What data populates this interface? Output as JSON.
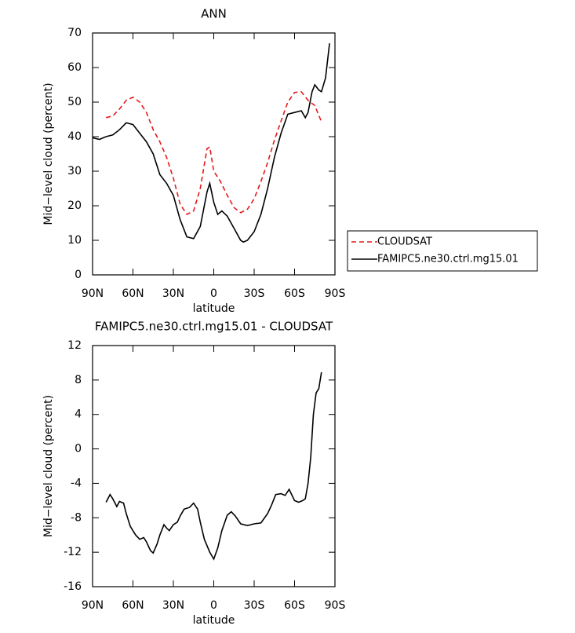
{
  "chart_data": [
    {
      "type": "line",
      "title": "ANN",
      "xlabel": "latitude",
      "ylabel": "Mid−level cloud (percent)",
      "xlim": [
        90,
        -90
      ],
      "ylim": [
        0,
        70
      ],
      "xticks": [
        {
          "value": 90,
          "label": "90N"
        },
        {
          "value": 60,
          "label": "60N"
        },
        {
          "value": 30,
          "label": "30N"
        },
        0,
        {
          "value": -30,
          "label": "30S"
        },
        {
          "value": -60,
          "label": "60S"
        },
        {
          "value": -90,
          "label": "90S"
        }
      ],
      "yticks": [
        0,
        10,
        20,
        30,
        40,
        50,
        60,
        70
      ],
      "legend": "right",
      "series": [
        {
          "name": "CLOUDSAT",
          "color": "#e41a1c",
          "dash": true,
          "x": [
            80,
            75,
            70,
            65,
            60,
            55,
            50,
            45,
            40,
            35,
            30,
            25,
            20,
            15,
            10,
            5,
            3,
            0,
            -5,
            -10,
            -15,
            -20,
            -25,
            -30,
            -35,
            -40,
            -45,
            -50,
            -55,
            -60,
            -65,
            -70,
            -75,
            -80
          ],
          "values": [
            45.5,
            46,
            48,
            50.5,
            51.4,
            50,
            47,
            42,
            38.5,
            34,
            28,
            20.5,
            17.5,
            18.5,
            25,
            36.5,
            37,
            30,
            27,
            23,
            19.5,
            18,
            19,
            22,
            27,
            32.5,
            39,
            44.5,
            50,
            52.8,
            53,
            50.5,
            49,
            44.3
          ]
        },
        {
          "name": "FAMIPC5.ne30.ctrl.mg15.01",
          "color": "#000000",
          "dash": false,
          "x": [
            90,
            85,
            80,
            75,
            70,
            65,
            60,
            55,
            50,
            45,
            40,
            35,
            30,
            25,
            20,
            15,
            10,
            5,
            3,
            0,
            -3,
            -6,
            -10,
            -15,
            -20,
            -22,
            -25,
            -30,
            -35,
            -40,
            -45,
            -50,
            -55,
            -60,
            -65,
            -68,
            -70,
            -73,
            -75,
            -78,
            -80,
            -83,
            -86
          ],
          "values": [
            39.7,
            39.2,
            40,
            40.5,
            42,
            44,
            43.5,
            41,
            38.5,
            35,
            29,
            26.5,
            23,
            16,
            11,
            10.5,
            14,
            24,
            26.5,
            21,
            17.5,
            18.5,
            17,
            13.5,
            10,
            9.5,
            10,
            12.5,
            17.5,
            25,
            34,
            41,
            46.5,
            47,
            47.5,
            45.5,
            47,
            53,
            55,
            53.5,
            53,
            57,
            67
          ]
        }
      ]
    },
    {
      "type": "line",
      "title": "FAMIPC5.ne30.ctrl.mg15.01 - CLOUDSAT",
      "xlabel": "latitude",
      "ylabel": "Mid−level cloud (percent)",
      "xlim": [
        90,
        -90
      ],
      "ylim": [
        -16,
        12
      ],
      "xticks": [
        {
          "value": 90,
          "label": "90N"
        },
        {
          "value": 60,
          "label": "60N"
        },
        {
          "value": 30,
          "label": "30N"
        },
        0,
        {
          "value": -30,
          "label": "30S"
        },
        {
          "value": -60,
          "label": "60S"
        },
        {
          "value": -90,
          "label": "90S"
        }
      ],
      "yticks": [
        -16,
        -12,
        -8,
        -4,
        0,
        4,
        8,
        12
      ],
      "series": [
        {
          "color": "#000000",
          "dash": false,
          "x": [
            80,
            77,
            75,
            72,
            70,
            67,
            65,
            62,
            58,
            55,
            52,
            50,
            47,
            45,
            42,
            40,
            37,
            35,
            33,
            30,
            27,
            25,
            22,
            18,
            15,
            12,
            10,
            7,
            3,
            0,
            -3,
            -6,
            -10,
            -13,
            -16,
            -20,
            -25,
            -30,
            -35,
            -40,
            -43,
            -46,
            -50,
            -53,
            -56,
            -60,
            -63,
            -66,
            -68,
            -70,
            -72,
            -74,
            -76,
            -78,
            -80
          ],
          "values": [
            -6.2,
            -5.3,
            -5.8,
            -6.7,
            -6.1,
            -6.3,
            -7.5,
            -9,
            -10,
            -10.5,
            -10.3,
            -10.8,
            -11.8,
            -12.1,
            -11,
            -10,
            -8.8,
            -9.2,
            -9.5,
            -8.8,
            -8.5,
            -7.8,
            -7,
            -6.8,
            -6.3,
            -7,
            -8.5,
            -10.5,
            -12,
            -12.8,
            -11.5,
            -9.5,
            -7.7,
            -7.3,
            -7.8,
            -8.7,
            -8.9,
            -8.7,
            -8.6,
            -7.5,
            -6.5,
            -5.3,
            -5.2,
            -5.4,
            -4.7,
            -6,
            -6.2,
            -6,
            -5.8,
            -4,
            -1,
            4,
            6.5,
            7,
            8.9
          ]
        }
      ]
    }
  ]
}
